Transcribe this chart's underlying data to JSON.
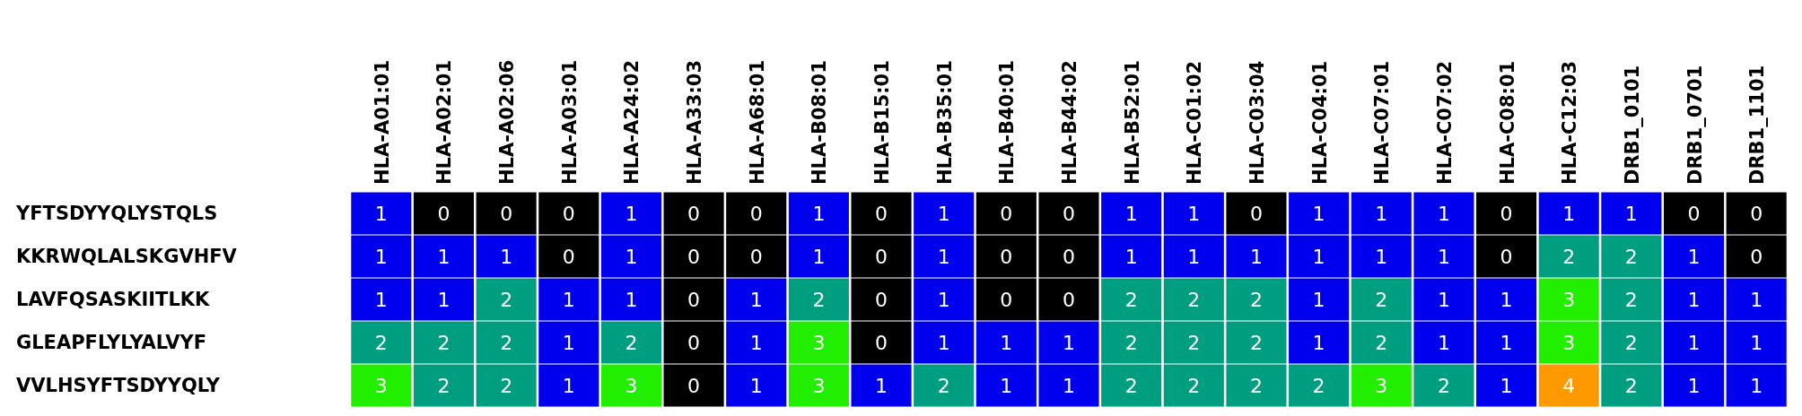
{
  "chart_data": {
    "type": "heatmap",
    "categories": [
      "HLA-A01:01",
      "HLA-A02:01",
      "HLA-A02:06",
      "HLA-A03:01",
      "HLA-A24:02",
      "HLA-A33:03",
      "HLA-A68:01",
      "HLA-B08:01",
      "HLA-B15:01",
      "HLA-B35:01",
      "HLA-B40:01",
      "HLA-B44:02",
      "HLA-B52:01",
      "HLA-C01:02",
      "HLA-C03:04",
      "HLA-C04:01",
      "HLA-C07:01",
      "HLA-C07:02",
      "HLA-C08:01",
      "HLA-C12:03",
      "DRB1_0101",
      "DRB1_0701",
      "DRB1_1101"
    ],
    "y_categories": [
      "YFTSDYYQLYSTQLS",
      "KKRWQLALSKGVHFV",
      "LAVFQSASKIITLKK",
      "GLEAPFLYLYALVYF",
      "VVLHSYFTSDYYQLY"
    ],
    "cells": [
      [
        1,
        0,
        0,
        0,
        1,
        0,
        0,
        1,
        0,
        1,
        0,
        0,
        1,
        1,
        0,
        1,
        1,
        1,
        0,
        1,
        1,
        0,
        0
      ],
      [
        1,
        1,
        1,
        0,
        1,
        0,
        0,
        1,
        0,
        1,
        0,
        0,
        1,
        1,
        1,
        1,
        1,
        1,
        0,
        2,
        2,
        1,
        0
      ],
      [
        1,
        1,
        2,
        1,
        1,
        0,
        1,
        2,
        0,
        1,
        0,
        0,
        2,
        2,
        2,
        1,
        2,
        1,
        1,
        3,
        2,
        1,
        1
      ],
      [
        2,
        2,
        2,
        1,
        2,
        0,
        1,
        3,
        0,
        1,
        1,
        1,
        2,
        2,
        2,
        1,
        2,
        1,
        1,
        3,
        2,
        1,
        1
      ],
      [
        3,
        2,
        2,
        1,
        3,
        0,
        1,
        3,
        1,
        2,
        1,
        1,
        2,
        2,
        2,
        2,
        3,
        2,
        1,
        4,
        2,
        1,
        1
      ]
    ],
    "colors": [
      "#000000",
      "#0000ee",
      "#009e80",
      "#22ee00",
      "#ff9900"
    ],
    "data_labels": true
  }
}
